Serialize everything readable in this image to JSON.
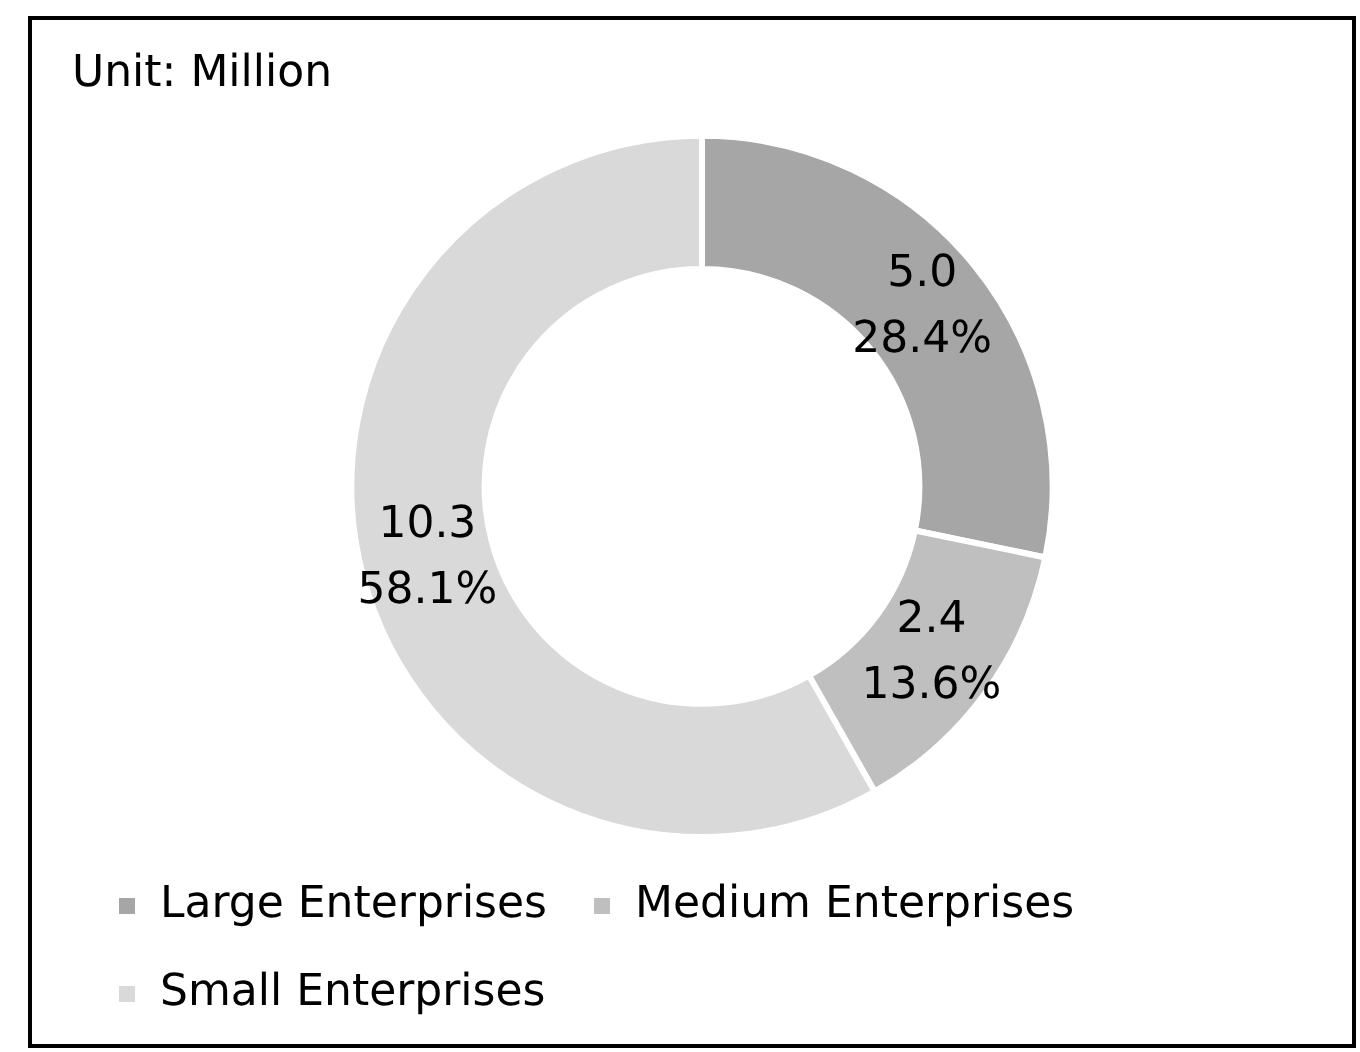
{
  "chart_data": {
    "type": "donut",
    "title": "Unit: Million",
    "categories": [
      "Large Enterprises",
      "Medium Enterprises",
      "Small Enterprises"
    ],
    "values": [
      5.0,
      2.4,
      10.3
    ],
    "colors": [
      "#a6a6a6",
      "#bfbfbf",
      "#d9d9d9"
    ],
    "value_labels": [
      "5.0\n28.4%",
      "2.4\n13.6%",
      "10.3\n58.1%"
    ],
    "legend": "bottom"
  }
}
